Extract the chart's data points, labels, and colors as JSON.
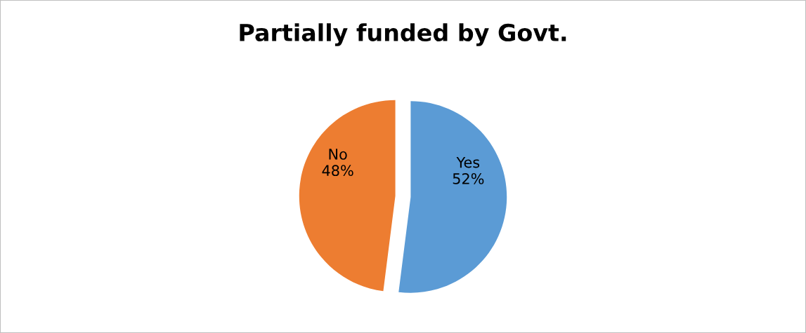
{
  "chart_data": {
    "type": "pie",
    "title": "Partially funded by Govt.",
    "categories": [
      "Yes",
      "No"
    ],
    "values": [
      52,
      48
    ],
    "value_labels": [
      "52%",
      "48%"
    ],
    "colors": [
      "#5b9bd5",
      "#ed7d31"
    ],
    "legend": false
  }
}
